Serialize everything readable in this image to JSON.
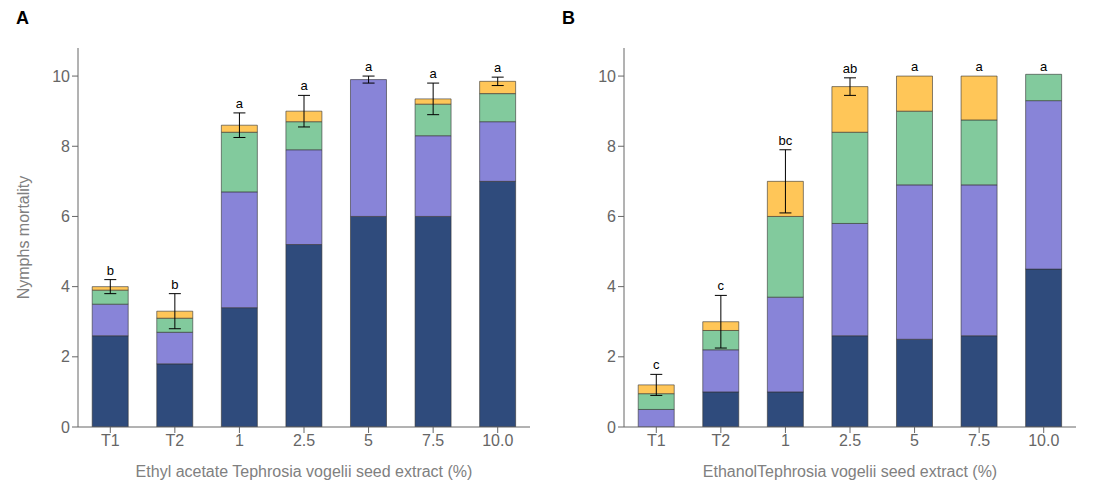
{
  "chart_data": [
    {
      "type": "bar",
      "stacked": true,
      "title": "A",
      "ylabel": "Nymphs mortality",
      "xlabel": "Ethyl acetate Tephrosia vogelii seed extract (%)",
      "categories": [
        "T1",
        "T2",
        "1",
        "2.5",
        "5",
        "7.5",
        "10.0"
      ],
      "series": [
        {
          "values": [
            2.6,
            1.8,
            3.4,
            5.2,
            6.0,
            6.0,
            7.0
          ]
        },
        {
          "values": [
            0.9,
            0.9,
            3.3,
            2.7,
            3.9,
            2.3,
            1.7
          ]
        },
        {
          "values": [
            0.4,
            0.4,
            1.7,
            0.8,
            0.0,
            0.9,
            0.8
          ]
        },
        {
          "values": [
            0.1,
            0.2,
            0.2,
            0.3,
            0.0,
            0.15,
            0.35
          ]
        }
      ],
      "totals": [
        4.0,
        3.3,
        8.6,
        9.0,
        9.9,
        9.35,
        9.85
      ],
      "errors": [
        0.2,
        0.5,
        0.35,
        0.45,
        0.1,
        0.45,
        0.12
      ],
      "letters": [
        "b",
        "b",
        "a",
        "a",
        "a",
        "a",
        "a"
      ],
      "ylim": [
        0,
        10.8
      ],
      "yticks": [
        0,
        2,
        4,
        6,
        8,
        10
      ],
      "grid": false
    },
    {
      "type": "bar",
      "stacked": true,
      "title": "B",
      "xlabel": "EthanolTephrosia vogelii seed extract (%)",
      "categories": [
        "T1",
        "T2",
        "1",
        "2.5",
        "5",
        "7.5",
        "10.0"
      ],
      "series": [
        {
          "values": [
            0.0,
            1.0,
            1.0,
            2.6,
            2.5,
            2.6,
            4.5
          ]
        },
        {
          "values": [
            0.5,
            1.2,
            2.7,
            3.2,
            4.4,
            4.3,
            4.8
          ]
        },
        {
          "values": [
            0.45,
            0.55,
            2.3,
            2.6,
            2.1,
            1.85,
            0.75
          ]
        },
        {
          "values": [
            0.25,
            0.25,
            1.0,
            1.3,
            1.0,
            1.25,
            0.0
          ]
        }
      ],
      "totals": [
        1.2,
        3.0,
        7.0,
        9.7,
        10.0,
        10.0,
        10.0
      ],
      "errors": [
        0.3,
        0.75,
        0.9,
        0.25,
        0.0,
        0.0,
        0.0
      ],
      "letters": [
        "c",
        "c",
        "bc",
        "ab",
        "a",
        "a",
        "a"
      ],
      "ylim": [
        0,
        10.8
      ],
      "yticks": [
        0,
        2,
        4,
        6,
        8,
        10
      ],
      "grid": false
    }
  ]
}
